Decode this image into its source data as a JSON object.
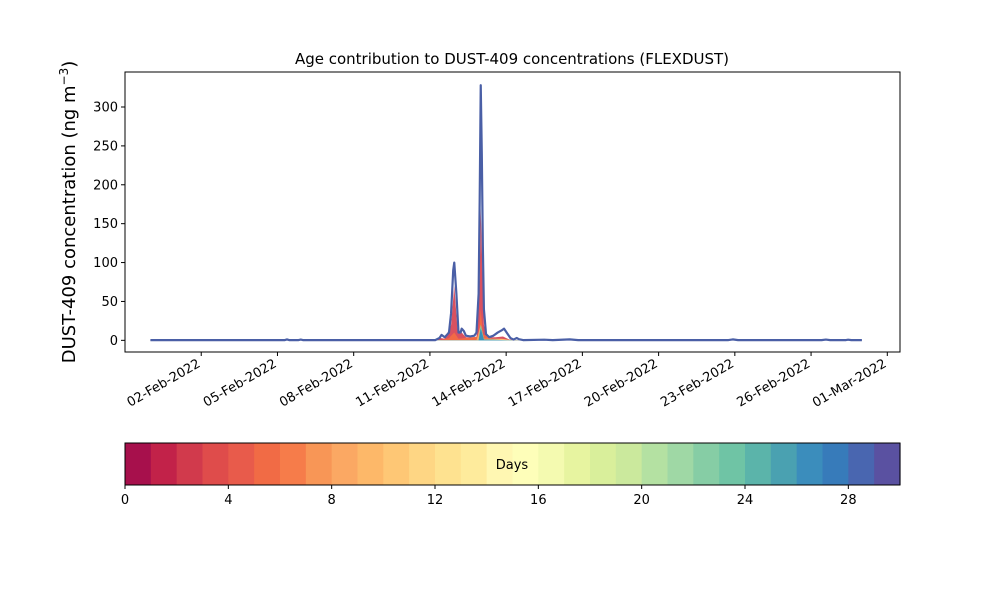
{
  "chart_data": {
    "type": "area",
    "title": "Age contribution to DUST-409 concentrations (FLEXDUST)",
    "ylabel_main": "DUST-409 concentration (ng m",
    "ylabel_sup": "−3",
    "ylabel_close": ")",
    "xlabel": "",
    "x_start": "2022-01-31",
    "x_end": "2022-02-28",
    "xlim": [
      "2022-01-30",
      "2022-03-01T12:00"
    ],
    "ylim": [
      -15,
      345
    ],
    "yticks": [
      0,
      50,
      100,
      150,
      200,
      250,
      300
    ],
    "xticks": [
      {
        "date": "2022-02-02",
        "label": "02-Feb-2022"
      },
      {
        "date": "2022-02-05",
        "label": "05-Feb-2022"
      },
      {
        "date": "2022-02-08",
        "label": "08-Feb-2022"
      },
      {
        "date": "2022-02-11",
        "label": "11-Feb-2022"
      },
      {
        "date": "2022-02-14",
        "label": "14-Feb-2022"
      },
      {
        "date": "2022-02-17",
        "label": "17-Feb-2022"
      },
      {
        "date": "2022-02-20",
        "label": "20-Feb-2022"
      },
      {
        "date": "2022-02-23",
        "label": "23-Feb-2022"
      },
      {
        "date": "2022-02-26",
        "label": "26-Feb-2022"
      },
      {
        "date": "2022-03-01",
        "label": "01-Mar-2022"
      }
    ],
    "series_total": {
      "color": "#4a5fa6",
      "points": [
        [
          "2022-01-31T00:00",
          0.3
        ],
        [
          "2022-02-05T07:00",
          0.3
        ],
        [
          "2022-02-05T09:00",
          1.2
        ],
        [
          "2022-02-05T11:00",
          0.3
        ],
        [
          "2022-02-05T20:00",
          0.3
        ],
        [
          "2022-02-05T22:00",
          1.0
        ],
        [
          "2022-02-06T00:00",
          0.3
        ],
        [
          "2022-02-11T05:00",
          0.3
        ],
        [
          "2022-02-11T09:00",
          3.0
        ],
        [
          "2022-02-11T11:00",
          7.0
        ],
        [
          "2022-02-11T14:00",
          4.0
        ],
        [
          "2022-02-11T18:00",
          10.0
        ],
        [
          "2022-02-11T20:00",
          35.0
        ],
        [
          "2022-02-11T22:00",
          90.0
        ],
        [
          "2022-02-11T23:00",
          100.0
        ],
        [
          "2022-02-12T01:00",
          60.0
        ],
        [
          "2022-02-12T03:00",
          10.0
        ],
        [
          "2022-02-12T05:00",
          10.0
        ],
        [
          "2022-02-12T06:00",
          15.0
        ],
        [
          "2022-02-12T08:00",
          12.0
        ],
        [
          "2022-02-12T10:00",
          6.0
        ],
        [
          "2022-02-12T14:00",
          5.0
        ],
        [
          "2022-02-12T18:00",
          6.0
        ],
        [
          "2022-02-12T20:00",
          10.0
        ],
        [
          "2022-02-12T22:00",
          60.0
        ],
        [
          "2022-02-12T23:00",
          180.0
        ],
        [
          "2022-02-13T00:00",
          328.0
        ],
        [
          "2022-02-13T01:00",
          240.0
        ],
        [
          "2022-02-13T02:00",
          120.0
        ],
        [
          "2022-02-13T03:00",
          40.0
        ],
        [
          "2022-02-13T05:00",
          8.0
        ],
        [
          "2022-02-13T08:00",
          4.0
        ],
        [
          "2022-02-13T12:00",
          6.0
        ],
        [
          "2022-02-13T16:00",
          10.0
        ],
        [
          "2022-02-13T20:00",
          13.0
        ],
        [
          "2022-02-13T22:00",
          15.0
        ],
        [
          "2022-02-14T01:00",
          9.0
        ],
        [
          "2022-02-14T04:00",
          3.0
        ],
        [
          "2022-02-14T07:00",
          1.0
        ],
        [
          "2022-02-14T10:00",
          3.0
        ],
        [
          "2022-02-14T12:00",
          1.5
        ],
        [
          "2022-02-14T16:00",
          0.3
        ],
        [
          "2022-02-15T12:00",
          0.8
        ],
        [
          "2022-02-15T20:00",
          0.3
        ],
        [
          "2022-02-16T12:00",
          1.2
        ],
        [
          "2022-02-16T20:00",
          0.3
        ],
        [
          "2022-02-22T18:00",
          0.3
        ],
        [
          "2022-02-22T22:00",
          1.2
        ],
        [
          "2022-02-23T03:00",
          0.3
        ],
        [
          "2022-02-26T10:00",
          0.3
        ],
        [
          "2022-02-26T14:00",
          1.0
        ],
        [
          "2022-02-26T18:00",
          0.3
        ],
        [
          "2022-02-27T09:00",
          0.3
        ],
        [
          "2022-02-27T11:00",
          0.8
        ],
        [
          "2022-02-27T14:00",
          0.3
        ],
        [
          "2022-02-28T00:00",
          0.3
        ]
      ]
    },
    "series_bands": [
      {
        "color": "#d53e4f",
        "points": [
          [
            "2022-01-31T00:00",
            0.1
          ],
          [
            "2022-02-11T06:00",
            0.1
          ],
          [
            "2022-02-11T10:00",
            3.0
          ],
          [
            "2022-02-11T14:00",
            2.0
          ],
          [
            "2022-02-11T20:00",
            20.0
          ],
          [
            "2022-02-11T23:00",
            70.0
          ],
          [
            "2022-02-12T02:00",
            15.0
          ],
          [
            "2022-02-12T06:00",
            10.0
          ],
          [
            "2022-02-12T10:00",
            4.0
          ],
          [
            "2022-02-12T20:00",
            4.0
          ],
          [
            "2022-02-12T23:00",
            80.0
          ],
          [
            "2022-02-13T00:00",
            170.0
          ],
          [
            "2022-02-13T01:00",
            120.0
          ],
          [
            "2022-02-13T03:00",
            20.0
          ],
          [
            "2022-02-13T06:00",
            4.0
          ],
          [
            "2022-02-13T14:00",
            4.0
          ],
          [
            "2022-02-13T21:00",
            5.0
          ],
          [
            "2022-02-14T03:00",
            1.0
          ],
          [
            "2022-02-14T12:00",
            0.1
          ],
          [
            "2022-02-28T00:00",
            0.1
          ]
        ]
      },
      {
        "color": "#f46d43",
        "points": [
          [
            "2022-01-31T00:00",
            0.05
          ],
          [
            "2022-02-11T10:00",
            0.05
          ],
          [
            "2022-02-11T18:00",
            3.0
          ],
          [
            "2022-02-11T23:00",
            10.0
          ],
          [
            "2022-02-12T03:00",
            2.0
          ],
          [
            "2022-02-12T22:00",
            5.0
          ],
          [
            "2022-02-13T00:00",
            40.0
          ],
          [
            "2022-02-13T02:00",
            8.0
          ],
          [
            "2022-02-13T12:00",
            1.0
          ],
          [
            "2022-02-14T06:00",
            0.05
          ],
          [
            "2022-02-28T00:00",
            0.05
          ]
        ]
      },
      {
        "color": "#fdae61",
        "points": [
          [
            "2022-01-31T00:00",
            0.05
          ],
          [
            "2022-02-12T20:00",
            0.05
          ],
          [
            "2022-02-13T00:00",
            20.0
          ],
          [
            "2022-02-13T03:00",
            2.0
          ],
          [
            "2022-02-13T20:00",
            2.0
          ],
          [
            "2022-02-14T06:00",
            0.05
          ],
          [
            "2022-02-28T00:00",
            0.05
          ]
        ]
      },
      {
        "color": "#fee08b",
        "points": [
          [
            "2022-01-31T00:00",
            0.05
          ],
          [
            "2022-02-12T22:00",
            0.05
          ],
          [
            "2022-02-13T00:00",
            15.0
          ],
          [
            "2022-02-13T03:00",
            1.0
          ],
          [
            "2022-02-13T20:00",
            1.0
          ],
          [
            "2022-02-14T06:00",
            0.05
          ],
          [
            "2022-02-28T00:00",
            0.05
          ]
        ]
      },
      {
        "color": "#abdda4",
        "points": [
          [
            "2022-01-31T00:00",
            0.05
          ],
          [
            "2022-02-12T22:00",
            0.05
          ],
          [
            "2022-02-13T00:00",
            20.0
          ],
          [
            "2022-02-13T03:00",
            1.0
          ],
          [
            "2022-02-14T06:00",
            0.05
          ],
          [
            "2022-02-28T00:00",
            0.05
          ]
        ]
      },
      {
        "color": "#66c2a5",
        "points": [
          [
            "2022-01-31T00:00",
            0.05
          ],
          [
            "2022-02-12T22:00",
            0.05
          ],
          [
            "2022-02-13T00:00",
            20.0
          ],
          [
            "2022-02-13T03:00",
            1.0
          ],
          [
            "2022-02-14T06:00",
            0.05
          ],
          [
            "2022-02-28T00:00",
            0.05
          ]
        ]
      },
      {
        "color": "#3288bd",
        "points": [
          [
            "2022-01-31T00:00",
            0.05
          ],
          [
            "2022-02-12T22:00",
            0.05
          ],
          [
            "2022-02-13T00:00",
            15.0
          ],
          [
            "2022-02-13T03:00",
            1.0
          ],
          [
            "2022-02-14T06:00",
            0.05
          ],
          [
            "2022-02-28T00:00",
            0.05
          ]
        ]
      }
    ],
    "colorbar": {
      "label": "Days",
      "min": 0,
      "max": 30,
      "ticks": [
        0,
        4,
        8,
        12,
        16,
        20,
        24,
        28
      ],
      "colors": [
        "#a7104c",
        "#c22249",
        "#d13a4c",
        "#df4c4b",
        "#e85b4b",
        "#f16b45",
        "#f67c4a",
        "#f89656",
        "#fba863",
        "#fdb869",
        "#fec775",
        "#fed684",
        "#fee290",
        "#feeb9c",
        "#fff7b2",
        "#fefeb9",
        "#f4fab0",
        "#e7f4a0",
        "#d9ef9b",
        "#cbe99d",
        "#b4e1a2",
        "#9fd8a5",
        "#86cda5",
        "#6fc4a5",
        "#5bb4aa",
        "#4aa1b1",
        "#3b8dbc",
        "#377bba",
        "#4966b0",
        "#5a51a1"
      ]
    }
  }
}
